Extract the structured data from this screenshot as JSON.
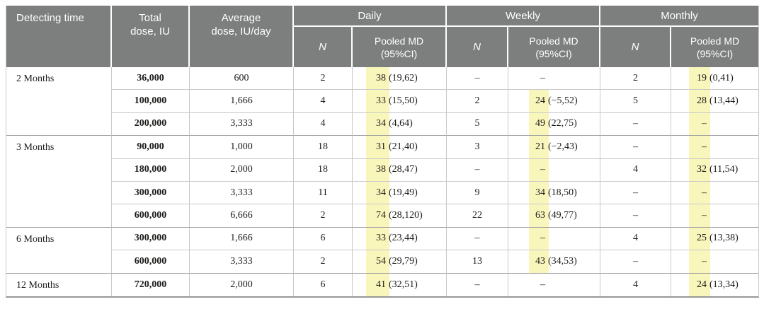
{
  "table": {
    "header": {
      "detecting_time": "Detecting time",
      "total_dose": "Total\ndose, IU",
      "average_dose": "Average\ndose, IU/day",
      "groups": [
        {
          "label": "Daily",
          "n": "N",
          "md": "Pooled MD\n(95%CI)"
        },
        {
          "label": "Weekly",
          "n": "N",
          "md": "Pooled MD\n(95%CI)"
        },
        {
          "label": "Monthly",
          "n": "N",
          "md": "Pooled MD\n(95%CI)"
        }
      ],
      "bg_color": "#7d7e7e",
      "text_color": "#ffffff"
    },
    "highlight_color": "#f9f6bc",
    "rows": [
      {
        "group": "2 Months",
        "span": 3,
        "total": "36,000",
        "avg": "600",
        "daily": {
          "n": "2",
          "md": "38",
          "ci": "(19,62)"
        },
        "weekly": {
          "n": "–",
          "md": "–",
          "ci": ""
        },
        "monthly": {
          "n": "2",
          "md": "19",
          "ci": "(0,41)"
        }
      },
      {
        "total": "100,000",
        "avg": "1,666",
        "daily": {
          "n": "4",
          "md": "33",
          "ci": "(15,50)"
        },
        "weekly": {
          "n": "2",
          "md": "24",
          "ci": "(−5,52)"
        },
        "monthly": {
          "n": "5",
          "md": "28",
          "ci": "(13,44)"
        }
      },
      {
        "total": "200,000",
        "avg": "3,333",
        "daily": {
          "n": "4",
          "md": "34",
          "ci": "(4,64)"
        },
        "weekly": {
          "n": "5",
          "md": "49",
          "ci": "(22,75)"
        },
        "monthly": {
          "n": "–",
          "md": "–",
          "ci": ""
        }
      },
      {
        "group": "3 Months",
        "span": 4,
        "total": "90,000",
        "avg": "1,000",
        "daily": {
          "n": "18",
          "md": "31",
          "ci": "(21,40)"
        },
        "weekly": {
          "n": "3",
          "md": "21",
          "ci": "(−2,43)"
        },
        "monthly": {
          "n": "–",
          "md": "–",
          "ci": ""
        }
      },
      {
        "total": "180,000",
        "avg": "2,000",
        "daily": {
          "n": "18",
          "md": "38",
          "ci": "(28,47)"
        },
        "weekly": {
          "n": "–",
          "md": "–",
          "ci": ""
        },
        "monthly": {
          "n": "4",
          "md": "32",
          "ci": "(11,54)"
        }
      },
      {
        "total": "300,000",
        "avg": "3,333",
        "daily": {
          "n": "11",
          "md": "34",
          "ci": "(19,49)"
        },
        "weekly": {
          "n": "9",
          "md": "34",
          "ci": "(18,50)"
        },
        "monthly": {
          "n": "–",
          "md": "–",
          "ci": ""
        }
      },
      {
        "total": "600,000",
        "avg": "6,666",
        "daily": {
          "n": "2",
          "md": "74",
          "ci": "(28,120)"
        },
        "weekly": {
          "n": "22",
          "md": "63",
          "ci": "(49,77)"
        },
        "monthly": {
          "n": "–",
          "md": "–",
          "ci": ""
        }
      },
      {
        "group": "6 Months",
        "span": 2,
        "total": "300,000",
        "avg": "1,666",
        "daily": {
          "n": "6",
          "md": "33",
          "ci": "(23,44)"
        },
        "weekly": {
          "n": "–",
          "md": "–",
          "ci": ""
        },
        "monthly": {
          "n": "4",
          "md": "25",
          "ci": "(13,38)"
        }
      },
      {
        "total": "600,000",
        "avg": "3,333",
        "daily": {
          "n": "2",
          "md": "54",
          "ci": "(29,79)"
        },
        "weekly": {
          "n": "13",
          "md": "43",
          "ci": "(34,53)"
        },
        "monthly": {
          "n": "–",
          "md": "–",
          "ci": ""
        }
      },
      {
        "group": "12 Months",
        "span": 1,
        "total": "720,000",
        "avg": "2,000",
        "daily": {
          "n": "6",
          "md": "41",
          "ci": "(32,51)"
        },
        "weekly": {
          "n": "–",
          "md": "–",
          "ci": ""
        },
        "monthly": {
          "n": "4",
          "md": "24",
          "ci": "(13,34)"
        }
      }
    ]
  }
}
